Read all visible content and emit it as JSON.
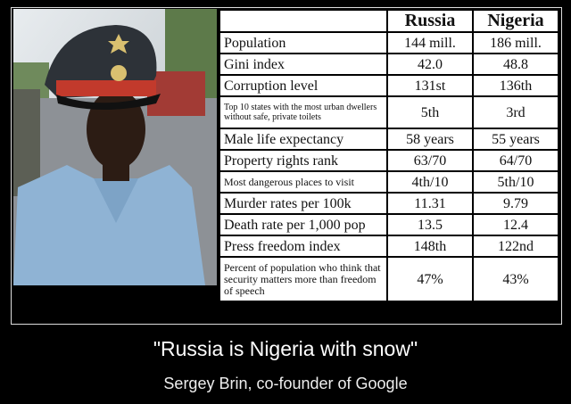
{
  "table": {
    "headers": [
      "",
      "Russia",
      "Nigeria"
    ],
    "rows": [
      {
        "label": "Population",
        "russia": "144 mill.",
        "nigeria": "186 mill.",
        "size": "n"
      },
      {
        "label": "Gini index",
        "russia": "42.0",
        "nigeria": "48.8",
        "size": "n"
      },
      {
        "label": "Corruption level",
        "russia": "131st",
        "nigeria": "136th",
        "size": "n"
      },
      {
        "label": "Top 10 states with the most urban dwellers without safe, private toilets",
        "russia": "5th",
        "nigeria": "3rd",
        "size": "sm"
      },
      {
        "label": "Male life expectancy",
        "russia": "58 years",
        "nigeria": "55 years",
        "size": "n"
      },
      {
        "label": "Property rights rank",
        "russia": "63/70",
        "nigeria": "64/70",
        "size": "n"
      },
      {
        "label": "Most dangerous places to visit",
        "russia": "4th/10",
        "nigeria": "5th/10",
        "size": "md"
      },
      {
        "label": "Murder rates per 100k",
        "russia": "11.31",
        "nigeria": "9.79",
        "size": "n"
      },
      {
        "label": "Death rate per 1,000 pop",
        "russia": "13.5",
        "nigeria": "12.4",
        "size": "n"
      },
      {
        "label": "Press freedom index",
        "russia": "148th",
        "nigeria": "122nd",
        "size": "n"
      },
      {
        "label": "Percent of population who think that security matters more than freedom of speech",
        "russia": "47%",
        "nigeria": "43%",
        "size": "md"
      }
    ]
  },
  "caption": {
    "quote": "\"Russia is Nigeria with snow\"",
    "attribution": "Sergey Brin, co-founder of Google"
  }
}
